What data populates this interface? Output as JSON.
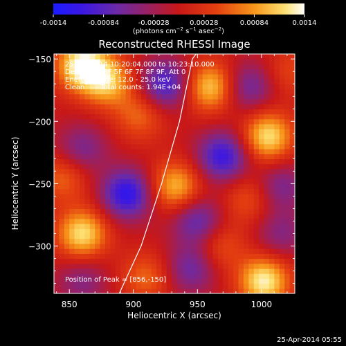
{
  "colorbar": {
    "ticks": [
      "-0.0014",
      "-0.00084",
      "-0.00028",
      "0.00028",
      "0.00084",
      "0.0014"
    ],
    "unit_base": "(photons cm",
    "unit_sup1": "−2",
    "unit_mid": " s",
    "unit_sup2": "−1",
    "unit_mid2": " asec",
    "unit_sup3": "−2",
    "unit_end": ")",
    "range": [
      -0.0014,
      0.0014
    ]
  },
  "info": {
    "line1": "25-Apr-2014 10:20:04.000 to 10:23:10.000",
    "line2": "Detectors: 3F 5F 6F 7F 8F 9F, Att 0",
    "line3": "Energy Range: 12.0 - 25.0 keV",
    "line4a": "Clean",
    "line4b": "Total counts: 1.94E+04",
    "peak": "Position of Peak = [856,-150]"
  },
  "footer_timestamp": "25-Apr-2014 05:55",
  "chart_data": {
    "type": "heatmap",
    "title": "Reconstructed RHESSI Image",
    "xlabel": "Heliocentric X (arcsec)",
    "ylabel": "Heliocentric Y (arcsec)",
    "xlim": [
      838,
      1026
    ],
    "ylim": [
      -338,
      -146
    ],
    "x_ticks": [
      850,
      900,
      950,
      1000
    ],
    "y_ticks": [
      -150,
      -200,
      -250,
      -300
    ],
    "colormap": "red-temperature",
    "colorbar_range": [
      -0.0014,
      0.0014
    ],
    "peak": [
      856,
      -150
    ],
    "limb_curve": [
      [
        889,
        -338
      ],
      [
        906,
        -300
      ],
      [
        922,
        -250
      ],
      [
        936,
        -200
      ],
      [
        946,
        -150
      ],
      [
        949,
        -146
      ]
    ],
    "sources": [
      {
        "x": 860,
        "y": -155,
        "value": 0.0014
      },
      {
        "x": 860,
        "y": -290,
        "value": 0.0012
      },
      {
        "x": 880,
        "y": -168,
        "value": 0.001
      },
      {
        "x": 960,
        "y": -172,
        "value": 0.0011
      },
      {
        "x": 1005,
        "y": -212,
        "value": 0.0012
      },
      {
        "x": 933,
        "y": -252,
        "value": 0.001
      },
      {
        "x": 1002,
        "y": -328,
        "value": 0.0013
      },
      {
        "x": 968,
        "y": -300,
        "value": 0.0005
      },
      {
        "x": 845,
        "y": -245,
        "value": 0.0006
      },
      {
        "x": 910,
        "y": -325,
        "value": 0.0006
      },
      {
        "x": 990,
        "y": -262,
        "value": 0.0005
      },
      {
        "x": 905,
        "y": -195,
        "value": 0.0006
      },
      {
        "x": 1022,
        "y": -160,
        "value": 0.0004
      },
      {
        "x": 895,
        "y": -258,
        "value": -0.0012
      },
      {
        "x": 925,
        "y": -170,
        "value": -0.001
      },
      {
        "x": 970,
        "y": -228,
        "value": -0.0011
      },
      {
        "x": 990,
        "y": -172,
        "value": -0.0007
      },
      {
        "x": 950,
        "y": -280,
        "value": -0.0008
      },
      {
        "x": 945,
        "y": -318,
        "value": -0.0007
      },
      {
        "x": 860,
        "y": -222,
        "value": -0.0006
      },
      {
        "x": 1015,
        "y": -252,
        "value": -0.0006
      },
      {
        "x": 860,
        "y": -328,
        "value": -0.0005
      },
      {
        "x": 1015,
        "y": -290,
        "value": -0.0005
      }
    ]
  }
}
